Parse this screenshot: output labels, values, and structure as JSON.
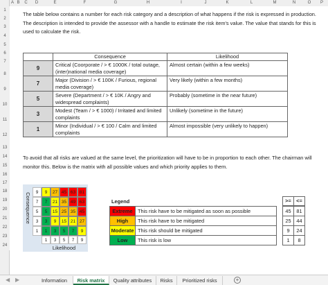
{
  "spreadsheet": {
    "columns": [
      "A",
      "B",
      "C",
      "D",
      "E",
      "F",
      "G",
      "H",
      "I",
      "J",
      "K",
      "L",
      "M",
      "N",
      "O",
      "P"
    ],
    "rows": [
      1,
      2,
      3,
      4,
      5,
      6,
      7,
      8,
      9,
      10,
      11,
      12,
      13,
      14,
      15,
      16,
      17,
      18,
      19,
      20,
      21,
      22,
      23,
      24
    ]
  },
  "intro": "The table below contains a number for each risk category and a description of what happens if the risk is expressed in production. The description is intended to provide the assessor with a handle to estimate the risk item's value. The value that stands for this is used to calculate the risk.",
  "table": {
    "headers": [
      "Consequence",
      "Likelihood"
    ],
    "rows": [
      {
        "value": 9,
        "consequence": "Critical (Coorporate / > € 1000K / total outage, (inter)national media coverage)",
        "likelihood": "Almost certain (within a few weeks)"
      },
      {
        "value": 7,
        "consequence": "Major (Division / > € 100K / Furious, regional media coverage)",
        "likelihood": "Very likely (within a few months)"
      },
      {
        "value": 5,
        "consequence": "Severe (Department / > € 10K / Angry and widespread complaints)",
        "likelihood": "Probably (sometime in the near future)"
      },
      {
        "value": 3,
        "consequence": "Modest (Team / > € 1000) / Irritated and limited complaints",
        "likelihood": "Unlikely (sometime in the future)"
      },
      {
        "value": 1,
        "consequence": "Minor (Individual / > € 100 / Calm and limited complaints",
        "likelihood": "Almost impossible (very unlikely to happen)"
      }
    ]
  },
  "note": "To avoid that all risks are valued at the same level, the prioritization will have to be in proportion to each other. The chairman will monitor this. Below is the matrix with all possible values and which priority applies to them.",
  "matrix": {
    "y_label": "Consequence",
    "x_label": "Likelihood",
    "row_values": [
      9,
      7,
      5,
      3,
      1
    ],
    "col_values": [
      1,
      3,
      5,
      7,
      9
    ],
    "cells": [
      [
        9,
        27,
        45,
        63,
        81
      ],
      [
        7,
        21,
        35,
        49,
        63
      ],
      [
        5,
        15,
        25,
        35,
        45
      ],
      [
        3,
        9,
        15,
        21,
        27
      ],
      [
        1,
        3,
        5,
        7,
        9
      ]
    ]
  },
  "legend": {
    "title": "Legend",
    "headers": [
      ">=",
      "<="
    ],
    "levels": [
      {
        "name": "Extreme",
        "description": "This risk have to be mitigated as soon as possible",
        "min": 45,
        "max": 81,
        "color": "#ff0000"
      },
      {
        "name": "High",
        "description": "This risk have to be mitigated",
        "min": 25,
        "max": 44,
        "color": "#ffc000"
      },
      {
        "name": "Moderate",
        "description": "This risk should be mitigated",
        "min": 9,
        "max": 24,
        "color": "#ffff00"
      },
      {
        "name": "Low",
        "description": "This risk is low",
        "min": 1,
        "max": 8,
        "color": "#00b050"
      }
    ]
  },
  "tabs": {
    "items": [
      "Information",
      "Risk matrix",
      "Quality attributes",
      "Risks",
      "Prioritized risks"
    ],
    "active": 1
  }
}
